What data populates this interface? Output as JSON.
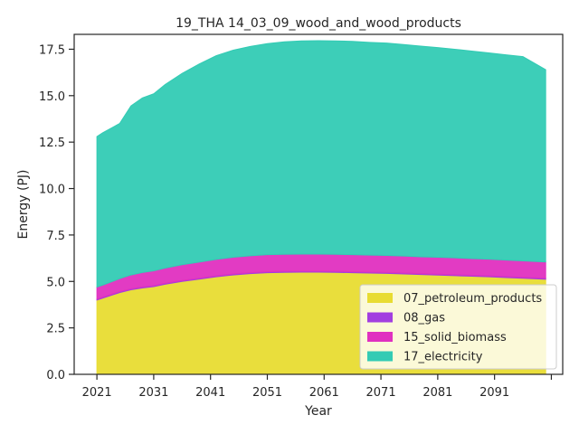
{
  "chart_data": {
    "type": "area",
    "stacked": true,
    "title": "19_THA 14_03_09_wood_and_wood_products",
    "xlabel": "Year",
    "ylabel": "Energy (PJ)",
    "xlim": [
      2017,
      2103
    ],
    "ylim": [
      0,
      18.3
    ],
    "xticks": [
      2021,
      2031,
      2041,
      2051,
      2061,
      2071,
      2081,
      2091,
      2101
    ],
    "xtick_labels": [
      "2021",
      "2031",
      "2041",
      "2051",
      "2061",
      "2071",
      "2081",
      "2091",
      ""
    ],
    "yticks": [
      0,
      2.5,
      5,
      7.5,
      10,
      12.5,
      15,
      17.5
    ],
    "ytick_labels": [
      "0.0",
      "2.5",
      "5.0",
      "7.5",
      "10.0",
      "12.5",
      "15.0",
      "17.5"
    ],
    "x": [
      2021,
      2022,
      2025,
      2027,
      2029,
      2031,
      2033,
      2036,
      2039,
      2042,
      2045,
      2048,
      2051,
      2054,
      2057,
      2060,
      2063,
      2066,
      2069,
      2072,
      2075,
      2078,
      2081,
      2084,
      2087,
      2090,
      2093,
      2096,
      2100
    ],
    "series": [
      {
        "name": "07_petroleum_products",
        "color": "#e8dc32",
        "values": [
          4.0,
          4.1,
          4.4,
          4.55,
          4.65,
          4.72,
          4.85,
          5.0,
          5.12,
          5.25,
          5.35,
          5.42,
          5.47,
          5.49,
          5.5,
          5.5,
          5.49,
          5.47,
          5.45,
          5.43,
          5.4,
          5.37,
          5.34,
          5.31,
          5.28,
          5.25,
          5.21,
          5.17,
          5.12
        ]
      },
      {
        "name": "08_gas",
        "color": "#a23ee0",
        "values": [
          0.05,
          0.05,
          0.05,
          0.05,
          0.05,
          0.05,
          0.05,
          0.05,
          0.05,
          0.05,
          0.05,
          0.05,
          0.05,
          0.05,
          0.05,
          0.05,
          0.05,
          0.05,
          0.05,
          0.05,
          0.05,
          0.05,
          0.05,
          0.05,
          0.05,
          0.05,
          0.05,
          0.05,
          0.05
        ]
      },
      {
        "name": "15_solid_biomass",
        "color": "#e030c0",
        "values": [
          0.65,
          0.65,
          0.7,
          0.75,
          0.78,
          0.8,
          0.82,
          0.85,
          0.87,
          0.89,
          0.9,
          0.91,
          0.92,
          0.92,
          0.92,
          0.92,
          0.92,
          0.92,
          0.92,
          0.92,
          0.92,
          0.91,
          0.91,
          0.91,
          0.9,
          0.9,
          0.89,
          0.89,
          0.88
        ]
      },
      {
        "name": "17_electricity",
        "color": "#33cbb4",
        "values": [
          8.1,
          8.2,
          8.35,
          9.1,
          9.4,
          9.53,
          9.88,
          10.3,
          10.66,
          10.96,
          11.15,
          11.27,
          11.36,
          11.44,
          11.48,
          11.49,
          11.49,
          11.48,
          11.45,
          11.43,
          11.38,
          11.34,
          11.29,
          11.23,
          11.17,
          11.1,
          11.05,
          10.99,
          10.35
        ]
      }
    ],
    "legend_position": "bottom-right",
    "grid": false
  }
}
